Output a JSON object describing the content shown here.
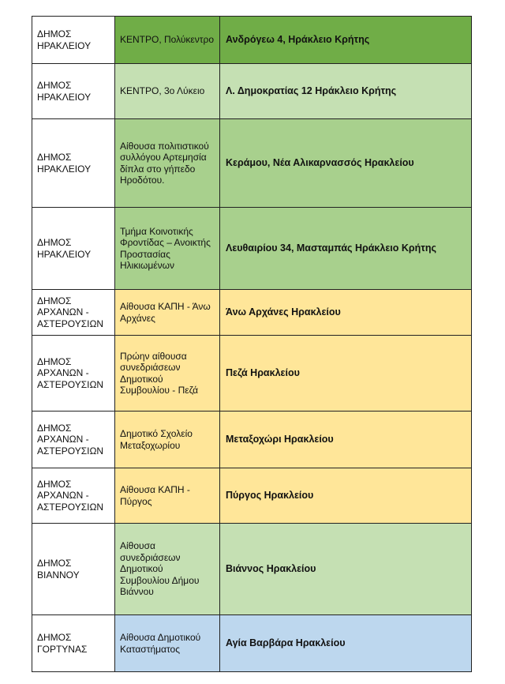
{
  "colors": {
    "dark_green": "#70ad47",
    "light_green": "#c5e0b3",
    "medium_green": "#a8d08d",
    "yellow": "#ffe699",
    "blue": "#bdd7ee"
  },
  "rows": [
    {
      "municipality": "ΔΗΜΟΣ ΗΡΑΚΛΕΙΟΥ",
      "venue": "ΚΕΝΤΡΟ, Πολύκεντρο",
      "address": "Ανδρόγεω 4, Ηράκλειο Κρήτης",
      "color": "#70ad47",
      "height": 60
    },
    {
      "municipality": "ΔΗΜΟΣ ΗΡΑΚΛΕΙΟΥ",
      "venue": "ΚΕΝΤΡΟ, 3ο Λύκειο",
      "address": "Λ. Δημοκρατίας 12 Ηράκλειο Κρήτης",
      "color": "#c5e0b3",
      "height": 70
    },
    {
      "municipality": "ΔΗΜΟΣ ΗΡΑΚΛΕΙΟΥ",
      "venue": "Αίθουσα πολιτιστικού συλλόγου Αρτεμησία δίπλα στο γήπεδο Ηροδότου.",
      "address": "Κεράμου, Νέα Αλικαρνασσός Ηρακλείου",
      "color": "#a8d08d",
      "height": 112
    },
    {
      "municipality": "ΔΗΜΟΣ ΗΡΑΚΛΕΙΟΥ",
      "venue": "Τμήμα Κοινοτικής Φροντίδας – Ανοικτής Προστασίας Ηλικιωμένων",
      "address": "Λευθαιρίου 34, Μασταμπάς Ηράκλειο Κρήτης",
      "color": "#a8d08d",
      "height": 104
    },
    {
      "municipality": "ΔΗΜΟΣ ΑΡΧΑΝΩΝ - ΑΣΤΕΡΟΥΣΙΩΝ",
      "venue": "Αίθουσα ΚΑΠΗ - Άνω Αρχάνες",
      "address": "Άνω Αρχάνες Ηρακλείου",
      "color": "#ffe699",
      "height": 58
    },
    {
      "municipality": "ΔΗΜΟΣ ΑΡΧΑΝΩΝ - ΑΣΤΕΡΟΥΣΙΩΝ",
      "venue": "Πρώην αίθουσα συνεδριάσεων Δημοτικού Συμβουλίου - Πεζά",
      "address": "Πεζά Ηρακλείου",
      "color": "#ffe699",
      "height": 96
    },
    {
      "municipality": "ΔΗΜΟΣ ΑΡΧΑΝΩΝ - ΑΣΤΕΡΟΥΣΙΩΝ",
      "venue": "Δημοτικό Σχολείο Μεταξοχωρίου",
      "address": "Μεταξοχώρι Ηρακλείου",
      "color": "#ffe699",
      "height": 72
    },
    {
      "municipality": "ΔΗΜΟΣ ΑΡΧΑΝΩΝ - ΑΣΤΕΡΟΥΣΙΩΝ",
      "venue": "Αίθουσα ΚΑΠΗ - Πύργος",
      "address": "Πύργος Ηρακλείου",
      "color": "#ffe699",
      "height": 70
    },
    {
      "municipality": "ΔΗΜΟΣ ΒΙΑΝΝΟΥ",
      "venue": "Αίθουσα συνεδριάσεων Δημοτικού Συμβουλίου Δήμου Βιάννου",
      "address": "Βιάννος Ηρακλείου",
      "color": "#c5e0b3",
      "height": 116
    },
    {
      "municipality": "ΔΗΜΟΣ ΓΟΡΤΥΝΑΣ",
      "venue": "Αίθουσα Δημοτικού Καταστήματος",
      "address": "Αγία Βαρβάρα Ηρακλείου",
      "color": "#bdd7ee",
      "height": 72
    }
  ]
}
